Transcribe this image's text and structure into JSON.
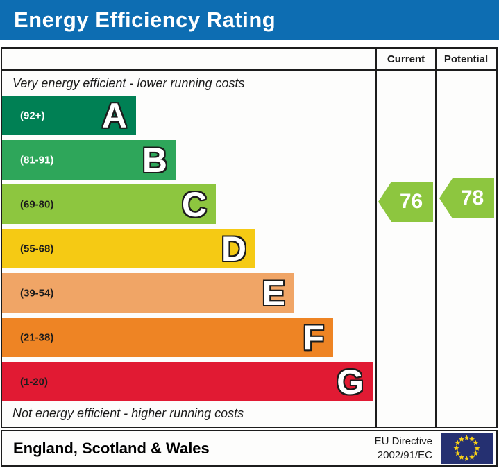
{
  "header": {
    "title": "Energy Efficiency Rating",
    "bg_color": "#0d6db2"
  },
  "table": {
    "columns": {
      "current": "Current",
      "potential": "Potential"
    },
    "top_caption": "Very energy efficient - lower running costs",
    "bottom_caption": "Not energy efficient - higher running costs",
    "bands": [
      {
        "letter": "A",
        "range": "(92+)",
        "color": "#008054",
        "text_color": "#ffffff",
        "bar_length": 193
      },
      {
        "letter": "B",
        "range": "(81-91)",
        "color": "#2ea65a",
        "text_color": "#ffffff",
        "bar_length": 251
      },
      {
        "letter": "C",
        "range": "(69-80)",
        "color": "#8dc63f",
        "text_color": "#1c1c1c",
        "bar_length": 308
      },
      {
        "letter": "D",
        "range": "(55-68)",
        "color": "#f5ca14",
        "text_color": "#1c1c1c",
        "bar_length": 365
      },
      {
        "letter": "E",
        "range": "(39-54)",
        "color": "#f0a566",
        "text_color": "#1c1c1c",
        "bar_length": 421
      },
      {
        "letter": "F",
        "range": "(21-38)",
        "color": "#ee8424",
        "text_color": "#1c1c1c",
        "bar_length": 477
      },
      {
        "letter": "G",
        "range": "(1-20)",
        "color": "#e11a33",
        "text_color": "#1c1c1c",
        "bar_length": 534
      }
    ],
    "ratings": {
      "current": {
        "value": "76",
        "band": "C",
        "color": "#8dc63f"
      },
      "potential": {
        "value": "78",
        "band": "C",
        "color": "#8dc63f"
      }
    }
  },
  "footer": {
    "region": "England, Scotland & Wales",
    "directive_line1": "EU Directive",
    "directive_line2": "2002/91/EC",
    "eu_flag": {
      "bg": "#253071",
      "star": "#f8d117"
    }
  },
  "chart_data": {
    "type": "bar",
    "orientation": "horizontal",
    "title": "Energy Efficiency Rating",
    "scale_min": 1,
    "scale_max": 100,
    "bands": [
      {
        "label": "A",
        "range": "92+",
        "min": 92,
        "max": 100,
        "color": "#008054"
      },
      {
        "label": "B",
        "range": "81-91",
        "min": 81,
        "max": 91,
        "color": "#2ea65a"
      },
      {
        "label": "C",
        "range": "69-80",
        "min": 69,
        "max": 80,
        "color": "#8dc63f"
      },
      {
        "label": "D",
        "range": "55-68",
        "min": 55,
        "max": 68,
        "color": "#f5ca14"
      },
      {
        "label": "E",
        "range": "39-54",
        "min": 39,
        "max": 54,
        "color": "#f0a566"
      },
      {
        "label": "F",
        "range": "21-38",
        "min": 21,
        "max": 38,
        "color": "#ee8424"
      },
      {
        "label": "G",
        "range": "1-20",
        "min": 1,
        "max": 20,
        "color": "#e11a33"
      }
    ],
    "markers": [
      {
        "name": "Current",
        "value": 76,
        "band": "C",
        "color": "#8dc63f"
      },
      {
        "name": "Potential",
        "value": 78,
        "band": "C",
        "color": "#8dc63f"
      }
    ],
    "annotations": [
      "Very energy efficient - lower running costs",
      "Not energy efficient - higher running costs"
    ],
    "footer_labels": [
      "England, Scotland & Wales",
      "EU Directive 2002/91/EC"
    ]
  }
}
